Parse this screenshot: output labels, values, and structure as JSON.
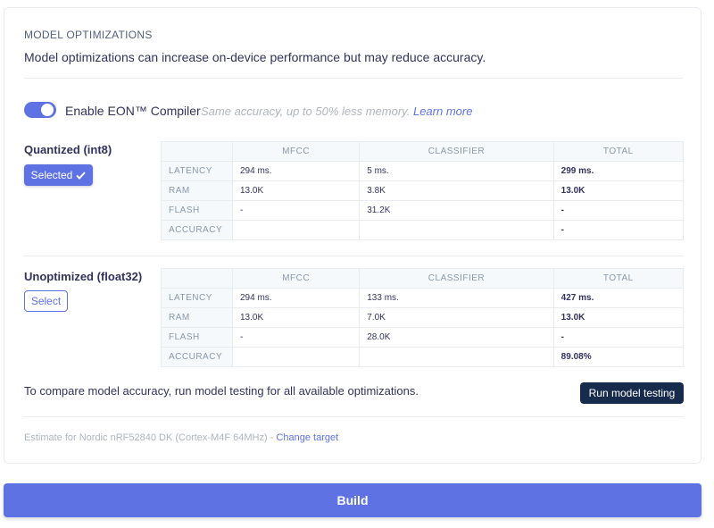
{
  "section": {
    "title": "MODEL OPTIMIZATIONS",
    "description": "Model optimizations can increase on-device performance but may reduce accuracy."
  },
  "eon": {
    "enabled": true,
    "label": "Enable EON™ Compiler",
    "hint": "Same accuracy, up to 50% less memory.",
    "learn_more": "Learn more"
  },
  "table_headers": [
    "MFCC",
    "CLASSIFIER",
    "TOTAL"
  ],
  "quantized": {
    "label": "Quantized (int8)",
    "button": "Selected",
    "rows": [
      {
        "name": "LATENCY",
        "mfcc": "294 ms.",
        "classifier": "5 ms.",
        "total": "299 ms."
      },
      {
        "name": "RAM",
        "mfcc": "13.0K",
        "classifier": "3.8K",
        "total": "13.0K"
      },
      {
        "name": "FLASH",
        "mfcc": "-",
        "classifier": "31.2K",
        "total": "-"
      },
      {
        "name": "ACCURACY",
        "mfcc": "",
        "classifier": "",
        "total": "-"
      }
    ]
  },
  "unoptimized": {
    "label": "Unoptimized (float32)",
    "button": "Select",
    "rows": [
      {
        "name": "LATENCY",
        "mfcc": "294 ms.",
        "classifier": "133 ms.",
        "total": "427 ms."
      },
      {
        "name": "RAM",
        "mfcc": "13.0K",
        "classifier": "7.0K",
        "total": "13.0K"
      },
      {
        "name": "FLASH",
        "mfcc": "-",
        "classifier": "28.0K",
        "total": "-"
      },
      {
        "name": "ACCURACY",
        "mfcc": "",
        "classifier": "",
        "total": "89.08%"
      }
    ]
  },
  "compare": {
    "text": "To compare model accuracy, run model testing for all available optimizations.",
    "button": "Run model testing"
  },
  "estimate": {
    "text": "Estimate for Nordic nRF52840 DK (Cortex-M4F 64MHz) -",
    "link": "Change target"
  },
  "build_button": "Build",
  "colors": {
    "accent": "#5e72e4",
    "dark": "#172b4d"
  }
}
